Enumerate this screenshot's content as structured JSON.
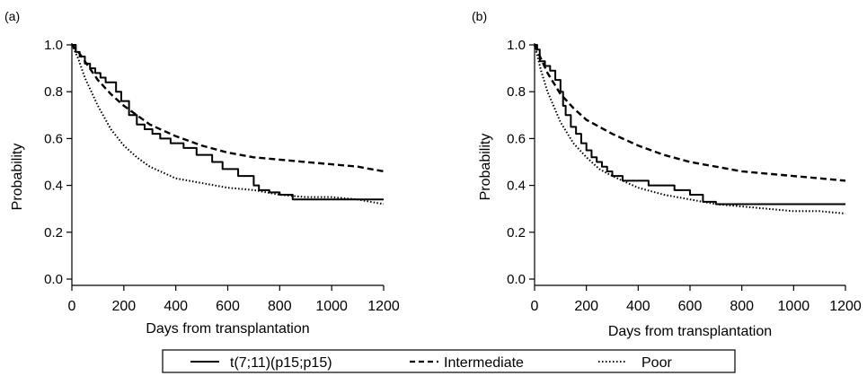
{
  "legend": {
    "entries": [
      {
        "label": "t(7;11)(p15;p15)",
        "style": "solid"
      },
      {
        "label": "Intermediate",
        "style": "dashed"
      },
      {
        "label": "Poor",
        "style": "dotted"
      }
    ]
  },
  "chart_data": [
    {
      "type": "line",
      "panel_label": "(a)",
      "xlabel": "Days from transplantation",
      "ylabel": "Probability",
      "xlim": [
        0,
        1200
      ],
      "ylim": [
        0,
        1.0
      ],
      "xticks": [
        0,
        200,
        400,
        600,
        800,
        1000,
        1200
      ],
      "yticks": [
        0.0,
        0.2,
        0.4,
        0.6,
        0.8,
        1.0
      ],
      "ytick_labels": [
        "0.0",
        "0.2",
        "0.4",
        "0.6",
        "0.8",
        "1.0"
      ],
      "grid": false,
      "series": [
        {
          "name": "t(7;11)(p15;p15)",
          "style": "solid",
          "step": true,
          "x": [
            0,
            15,
            30,
            50,
            70,
            90,
            110,
            130,
            150,
            170,
            190,
            220,
            250,
            280,
            310,
            340,
            380,
            430,
            480,
            540,
            580,
            640,
            700,
            720,
            760,
            800,
            850,
            1200
          ],
          "y": [
            1.0,
            0.97,
            0.95,
            0.92,
            0.9,
            0.88,
            0.86,
            0.84,
            0.84,
            0.8,
            0.76,
            0.7,
            0.66,
            0.64,
            0.62,
            0.6,
            0.58,
            0.56,
            0.53,
            0.5,
            0.47,
            0.44,
            0.4,
            0.38,
            0.37,
            0.36,
            0.34,
            0.34
          ]
        },
        {
          "name": "Intermediate",
          "style": "dashed",
          "step": false,
          "x": [
            0,
            25,
            50,
            100,
            150,
            200,
            250,
            300,
            400,
            500,
            600,
            700,
            800,
            900,
            1000,
            1100,
            1200
          ],
          "y": [
            1.0,
            0.97,
            0.93,
            0.85,
            0.79,
            0.74,
            0.7,
            0.66,
            0.61,
            0.57,
            0.54,
            0.52,
            0.51,
            0.5,
            0.49,
            0.48,
            0.46
          ]
        },
        {
          "name": "Poor",
          "style": "dotted",
          "step": false,
          "x": [
            0,
            25,
            50,
            100,
            150,
            200,
            250,
            300,
            400,
            500,
            600,
            700,
            800,
            900,
            1000,
            1100,
            1200
          ],
          "y": [
            1.0,
            0.94,
            0.86,
            0.74,
            0.64,
            0.57,
            0.52,
            0.48,
            0.43,
            0.41,
            0.39,
            0.38,
            0.36,
            0.35,
            0.35,
            0.34,
            0.32
          ]
        }
      ]
    },
    {
      "type": "line",
      "panel_label": "(b)",
      "xlabel": "Days from transplantation",
      "ylabel": "Probability",
      "xlim": [
        0,
        1200
      ],
      "ylim": [
        0,
        1.0
      ],
      "xticks": [
        0,
        200,
        400,
        600,
        800,
        1000,
        1200
      ],
      "yticks": [
        0.0,
        0.2,
        0.4,
        0.6,
        0.8,
        1.0
      ],
      "ytick_labels": [
        "0.0",
        "0.2",
        "0.4",
        "0.6",
        "0.8",
        "1.0"
      ],
      "grid": false,
      "series": [
        {
          "name": "t(7;11)(p15;p15)",
          "style": "solid",
          "step": true,
          "x": [
            0,
            10,
            20,
            40,
            60,
            80,
            100,
            110,
            120,
            140,
            160,
            180,
            200,
            220,
            240,
            260,
            280,
            300,
            340,
            380,
            440,
            540,
            600,
            650,
            700,
            1200
          ],
          "y": [
            1.0,
            0.98,
            0.93,
            0.91,
            0.89,
            0.85,
            0.8,
            0.74,
            0.7,
            0.65,
            0.62,
            0.58,
            0.55,
            0.52,
            0.5,
            0.48,
            0.46,
            0.44,
            0.42,
            0.42,
            0.4,
            0.38,
            0.36,
            0.33,
            0.32,
            0.32
          ]
        },
        {
          "name": "Intermediate",
          "style": "dashed",
          "step": false,
          "x": [
            0,
            25,
            50,
            100,
            150,
            200,
            250,
            300,
            400,
            500,
            600,
            700,
            800,
            900,
            1000,
            1100,
            1200
          ],
          "y": [
            1.0,
            0.94,
            0.88,
            0.79,
            0.73,
            0.68,
            0.65,
            0.62,
            0.57,
            0.53,
            0.5,
            0.48,
            0.46,
            0.45,
            0.44,
            0.43,
            0.42
          ]
        },
        {
          "name": "Poor",
          "style": "dotted",
          "step": false,
          "x": [
            0,
            25,
            50,
            100,
            150,
            200,
            250,
            300,
            400,
            500,
            600,
            700,
            800,
            900,
            1000,
            1100,
            1200
          ],
          "y": [
            1.0,
            0.89,
            0.8,
            0.67,
            0.58,
            0.52,
            0.47,
            0.44,
            0.39,
            0.36,
            0.34,
            0.32,
            0.31,
            0.3,
            0.29,
            0.29,
            0.28
          ]
        }
      ]
    }
  ]
}
